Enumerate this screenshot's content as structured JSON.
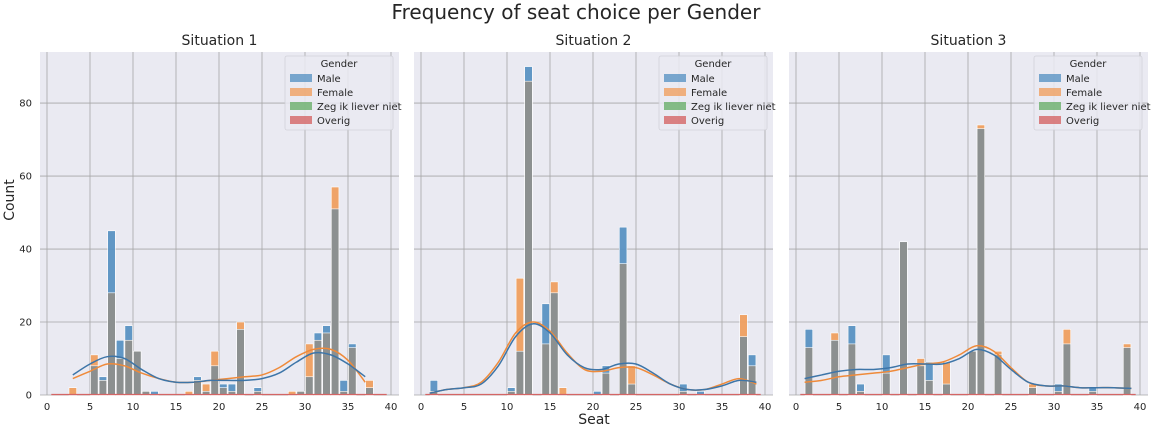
{
  "title": "Frequency of seat choice per Gender",
  "chart_data": {
    "type": "bar",
    "title": "Frequency of seat choice per Gender",
    "xlabel": "Seat",
    "ylabel": "Count",
    "xlim": [
      0,
      40
    ],
    "ylim": [
      0,
      94
    ],
    "xticks": [
      0,
      5,
      10,
      15,
      20,
      25,
      30,
      35,
      40
    ],
    "yticks": [
      0,
      20,
      40,
      60,
      80
    ],
    "grid": true,
    "legend_title": "Gender",
    "legend_position": "top-right",
    "series_names": [
      "Male",
      "Female",
      "Zeg ik liever niet",
      "Overig"
    ],
    "colors": {
      "male": "#5a93c3",
      "female": "#f0a060",
      "zeg": "#6aaf6a",
      "overig": "#d46565",
      "overlap": "#8c9090",
      "kde_male": "#3d75a8",
      "kde_female": "#ef8a3a",
      "background": "#eaeaf2",
      "grid": "#a6a6a6"
    },
    "panels": [
      {
        "title": "Situation 1",
        "legend": true,
        "bars": [
          {
            "seat": 3,
            "male": 0,
            "female": 2
          },
          {
            "seat": 5.5,
            "male": 8,
            "female": 11
          },
          {
            "seat": 6.5,
            "male": 5,
            "female": 4
          },
          {
            "seat": 7.5,
            "male": 45,
            "female": 28
          },
          {
            "seat": 8.5,
            "male": 15,
            "female": 10
          },
          {
            "seat": 9.5,
            "male": 19,
            "female": 15
          },
          {
            "seat": 10.5,
            "male": 12,
            "female": 12
          },
          {
            "seat": 11.5,
            "male": 1,
            "female": 1
          },
          {
            "seat": 12.5,
            "male": 1,
            "female": 0
          },
          {
            "seat": 16.5,
            "male": 0,
            "female": 1
          },
          {
            "seat": 17.5,
            "male": 5,
            "female": 4
          },
          {
            "seat": 18.5,
            "male": 1,
            "female": 3
          },
          {
            "seat": 19.5,
            "male": 8,
            "female": 12
          },
          {
            "seat": 20.5,
            "male": 3,
            "female": 2
          },
          {
            "seat": 21.5,
            "male": 3,
            "female": 1
          },
          {
            "seat": 22.5,
            "male": 18,
            "female": 20
          },
          {
            "seat": 24.5,
            "male": 2,
            "female": 1
          },
          {
            "seat": 28.5,
            "male": 0,
            "female": 1
          },
          {
            "seat": 29.5,
            "male": 1,
            "female": 1
          },
          {
            "seat": 30.5,
            "male": 5,
            "female": 14
          },
          {
            "seat": 31.5,
            "male": 17,
            "female": 15
          },
          {
            "seat": 32.5,
            "male": 19,
            "female": 17
          },
          {
            "seat": 33.5,
            "male": 51,
            "female": 57
          },
          {
            "seat": 34.5,
            "male": 4,
            "female": 1
          },
          {
            "seat": 35.5,
            "male": 14,
            "female": 13
          },
          {
            "seat": 37.5,
            "male": 2,
            "female": 4
          }
        ],
        "kde_x": [
          3,
          5,
          7,
          9,
          11,
          13,
          15,
          17,
          19,
          21,
          23,
          25,
          27,
          29,
          31,
          33,
          35,
          37
        ],
        "kde_male": [
          5.5,
          8.5,
          10.5,
          10,
          7,
          4.5,
          3.5,
          3.5,
          4,
          4,
          4,
          4.5,
          6,
          9,
          11.5,
          11,
          8.5,
          5
        ],
        "kde_female": [
          4.5,
          6.5,
          8.5,
          8,
          6,
          4.5,
          3.5,
          3.5,
          4,
          4.5,
          5,
          5.5,
          7.5,
          10.5,
          12.5,
          12.5,
          9.5,
          3.5
        ]
      },
      {
        "title": "Situation 2",
        "legend": true,
        "bars": [
          {
            "seat": 1.5,
            "male": 4,
            "female": 1
          },
          {
            "seat": 10.5,
            "male": 2,
            "female": 1
          },
          {
            "seat": 11.5,
            "male": 12,
            "female": 32
          },
          {
            "seat": 12.5,
            "male": 90,
            "female": 86
          },
          {
            "seat": 14.5,
            "male": 25,
            "female": 14
          },
          {
            "seat": 15.5,
            "male": 28,
            "female": 31
          },
          {
            "seat": 16.5,
            "male": 0,
            "female": 2
          },
          {
            "seat": 20.5,
            "male": 1,
            "female": 0
          },
          {
            "seat": 21.5,
            "male": 8,
            "female": 6
          },
          {
            "seat": 23.5,
            "male": 46,
            "female": 36
          },
          {
            "seat": 24.5,
            "male": 3,
            "female": 8
          },
          {
            "seat": 30.5,
            "male": 3,
            "female": 1
          },
          {
            "seat": 32.5,
            "male": 1,
            "female": 0
          },
          {
            "seat": 37.5,
            "male": 16,
            "female": 22
          },
          {
            "seat": 38.5,
            "male": 11,
            "female": 8
          }
        ],
        "kde_x": [
          1,
          3,
          5,
          7,
          9,
          11,
          13,
          15,
          17,
          19,
          21,
          23,
          25,
          27,
          29,
          31,
          33,
          35,
          37,
          39
        ],
        "kde_male": [
          0.5,
          1.5,
          2,
          3,
          8,
          16,
          19.5,
          17,
          11,
          7.5,
          7,
          8.5,
          8.5,
          6,
          3,
          1.5,
          1.5,
          2.5,
          4,
          3.5
        ],
        "kde_female": [
          0.5,
          1.5,
          2,
          3.5,
          9,
          17,
          20,
          17.5,
          11.5,
          7,
          6.5,
          7.5,
          7.5,
          5.5,
          3,
          1.5,
          1.5,
          3,
          4.5,
          3
        ]
      },
      {
        "title": "Situation 3",
        "legend": true,
        "bars": [
          {
            "seat": 1.5,
            "male": 18,
            "female": 13
          },
          {
            "seat": 4.5,
            "male": 15,
            "female": 17
          },
          {
            "seat": 6.5,
            "male": 19,
            "female": 14
          },
          {
            "seat": 7.5,
            "male": 3,
            "female": 1
          },
          {
            "seat": 10.5,
            "male": 11,
            "female": 6
          },
          {
            "seat": 12.5,
            "male": 42,
            "female": 42
          },
          {
            "seat": 14.5,
            "male": 8,
            "female": 10
          },
          {
            "seat": 15.5,
            "male": 9,
            "female": 4
          },
          {
            "seat": 17.5,
            "male": 3,
            "female": 9
          },
          {
            "seat": 20.5,
            "male": 12,
            "female": 12
          },
          {
            "seat": 21.5,
            "male": 73,
            "female": 74
          },
          {
            "seat": 23.5,
            "male": 11,
            "female": 12
          },
          {
            "seat": 27.5,
            "male": 2,
            "female": 3
          },
          {
            "seat": 30.5,
            "male": 3,
            "female": 1
          },
          {
            "seat": 31.5,
            "male": 14,
            "female": 18
          },
          {
            "seat": 34.5,
            "male": 2,
            "female": 1
          },
          {
            "seat": 38.5,
            "male": 13,
            "female": 14
          }
        ],
        "kde_x": [
          1,
          3,
          5,
          7,
          9,
          11,
          13,
          15,
          17,
          19,
          21,
          23,
          25,
          27,
          29,
          31,
          33,
          35,
          37,
          39
        ],
        "kde_male": [
          4.5,
          5.5,
          6.5,
          7,
          7,
          7.5,
          8.5,
          8.5,
          8.5,
          10,
          12.5,
          11,
          7,
          3.5,
          2.5,
          2.5,
          2,
          2,
          2,
          1.8
        ],
        "kde_female": [
          3.5,
          4,
          5,
          5.5,
          6,
          6.5,
          7.5,
          8.5,
          9,
          11,
          13.5,
          12,
          7.5,
          3.5,
          2.5,
          2.5,
          2,
          2,
          2,
          1.8
        ]
      }
    ]
  }
}
